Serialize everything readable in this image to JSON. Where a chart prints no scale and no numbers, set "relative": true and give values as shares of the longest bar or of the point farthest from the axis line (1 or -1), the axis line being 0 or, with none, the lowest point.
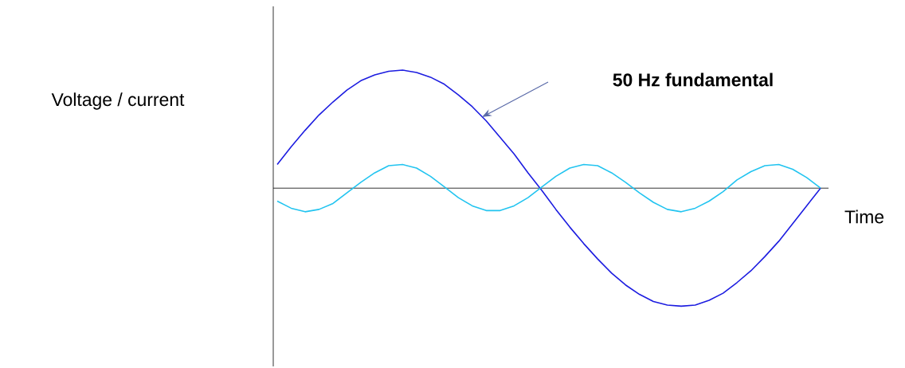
{
  "chart_data": {
    "type": "line",
    "relative": true,
    "xlabel": "Time",
    "ylabel": "Voltage / current",
    "annotations": [
      "50 Hz fundamental"
    ],
    "categories": [
      null,
      null,
      null,
      null,
      null,
      null,
      null,
      null,
      null,
      null,
      null,
      null,
      null,
      null,
      null,
      null,
      null,
      null,
      null,
      null,
      null,
      null,
      null,
      null,
      null,
      null,
      null,
      null,
      null,
      null,
      null,
      null,
      null,
      null,
      null,
      null,
      null,
      null,
      null,
      null
    ],
    "series": [
      {
        "color": "#1c1ce0",
        "values": [
          0.2,
          0.35,
          0.49,
          0.62,
          0.73,
          0.83,
          0.91,
          0.96,
          0.99,
          1.0,
          0.98,
          0.94,
          0.88,
          0.79,
          0.69,
          0.57,
          0.43,
          0.29,
          0.13,
          -0.02,
          -0.18,
          -0.33,
          -0.47,
          -0.6,
          -0.72,
          -0.82,
          -0.9,
          -0.96,
          -0.99,
          -1.0,
          -0.99,
          -0.95,
          -0.89,
          -0.8,
          -0.7,
          -0.58,
          -0.45,
          -0.3,
          -0.15,
          0.0
        ]
      },
      {
        "color": "#22c4f0",
        "values": [
          -0.11,
          -0.17,
          -0.2,
          -0.18,
          -0.13,
          -0.04,
          0.05,
          0.13,
          0.19,
          0.2,
          0.17,
          0.1,
          0.01,
          -0.08,
          -0.15,
          -0.19,
          -0.19,
          -0.15,
          -0.08,
          0.01,
          0.1,
          0.17,
          0.2,
          0.19,
          0.13,
          0.05,
          -0.04,
          -0.12,
          -0.18,
          -0.2,
          -0.17,
          -0.11,
          -0.03,
          0.07,
          0.14,
          0.19,
          0.2,
          0.16,
          0.09,
          0.0
        ]
      }
    ]
  }
}
